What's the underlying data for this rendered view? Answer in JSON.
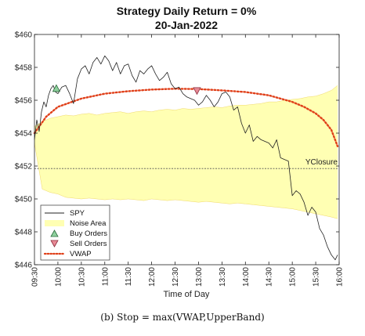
{
  "caption": "(b) Stop = max(VWAP,UpperBand)",
  "chart_data": {
    "type": "line",
    "title": "Strategy Daily Return = 0%",
    "subtitle": "20-Jan-2022",
    "xlabel": "Time of Day",
    "ylabel": "",
    "x_ticks": [
      "09:30",
      "10:00",
      "10:30",
      "11:00",
      "11:30",
      "12:00",
      "12:30",
      "13:00",
      "13:30",
      "14:00",
      "14:30",
      "15:00",
      "15:30",
      "16:00"
    ],
    "y_ticks": [
      "$446",
      "$448",
      "$450",
      "$452",
      "$454",
      "$456",
      "$458",
      "$460"
    ],
    "ylim": [
      446,
      460
    ],
    "xlim_minutes": [
      570,
      960
    ],
    "grid": false,
    "legend": {
      "position": "bottom-left",
      "entries": [
        "SPY",
        "Noise Area",
        "Buy Orders",
        "Sell Orders",
        "VWAP"
      ]
    },
    "annotation": "YClosure",
    "yclosure": 451.85,
    "colors": {
      "spy": "#222222",
      "noise_fill": "#ffffb3",
      "noise_edge": "#f0d86a",
      "buy": "#8fd19e",
      "sell": "#e88a96",
      "vwap": "#e0401a",
      "yclosure": "#555555"
    },
    "series": [
      {
        "name": "SPY",
        "x": [
          570,
          573,
          576,
          579,
          582,
          585,
          588,
          591,
          594,
          597,
          600,
          605,
          610,
          615,
          620,
          625,
          630,
          635,
          640,
          645,
          650,
          655,
          660,
          665,
          670,
          675,
          680,
          685,
          690,
          695,
          700,
          705,
          710,
          715,
          720,
          725,
          730,
          735,
          740,
          745,
          750,
          755,
          760,
          765,
          770,
          775,
          780,
          785,
          790,
          795,
          800,
          805,
          810,
          815,
          820,
          825,
          830,
          835,
          840,
          845,
          850,
          855,
          860,
          865,
          870,
          875,
          880,
          885,
          890,
          895,
          900,
          905,
          910,
          915,
          920,
          925,
          930,
          935,
          940,
          945,
          950,
          955,
          958
        ],
        "values": [
          453.6,
          454.8,
          454.1,
          455.3,
          455.9,
          455.6,
          456.3,
          456.7,
          456.9,
          456.5,
          456.4,
          456.8,
          456.9,
          456.4,
          455.8,
          457.3,
          457.9,
          458.1,
          457.6,
          458.3,
          458.6,
          458.2,
          458.7,
          458.4,
          457.8,
          458.3,
          457.6,
          458.1,
          458.2,
          457.5,
          457.1,
          457.8,
          457.6,
          457.9,
          458.1,
          457.6,
          457.2,
          457.4,
          457.7,
          457.0,
          456.7,
          456.8,
          456.4,
          456.2,
          456.1,
          456.0,
          455.7,
          455.9,
          456.3,
          456.0,
          455.6,
          455.9,
          456.4,
          456.5,
          456.2,
          455.4,
          455.6,
          454.6,
          454.0,
          454.5,
          453.5,
          453.8,
          453.6,
          453.5,
          453.4,
          453.1,
          453.6,
          452.5,
          452.4,
          452.3,
          450.2,
          450.5,
          450.3,
          449.8,
          449.0,
          449.5,
          449.2,
          448.2,
          447.8,
          447.1,
          446.6,
          446.3,
          446.6
        ]
      },
      {
        "name": "VWAP",
        "x": [
          570,
          585,
          600,
          630,
          660,
          690,
          720,
          750,
          780,
          810,
          840,
          870,
          900,
          915,
          930,
          940,
          950,
          958
        ],
        "values": [
          454.0,
          455.0,
          455.6,
          456.1,
          456.4,
          456.55,
          456.65,
          456.7,
          456.68,
          456.6,
          456.5,
          456.3,
          455.9,
          455.6,
          455.2,
          454.8,
          454.2,
          453.2
        ]
      },
      {
        "name": "Noise Area",
        "x": [
          570,
          580,
          590,
          600,
          610,
          620,
          630,
          640,
          650,
          660,
          670,
          680,
          690,
          700,
          710,
          720,
          730,
          740,
          750,
          760,
          770,
          780,
          790,
          800,
          810,
          820,
          830,
          840,
          850,
          860,
          870,
          880,
          890,
          900,
          910,
          920,
          930,
          940,
          950,
          958
        ],
        "upper": [
          454.4,
          454.7,
          454.9,
          455.0,
          455.1,
          455.05,
          455.15,
          455.2,
          455.1,
          455.2,
          455.25,
          455.3,
          455.2,
          455.3,
          455.35,
          455.3,
          455.4,
          455.45,
          455.4,
          455.5,
          455.45,
          455.5,
          455.55,
          455.6,
          455.55,
          455.65,
          455.7,
          455.7,
          455.75,
          455.8,
          455.9,
          455.9,
          456.0,
          456.05,
          456.1,
          456.2,
          456.25,
          456.4,
          456.6,
          456.9
        ],
        "lower": [
          453.4,
          450.6,
          450.4,
          450.3,
          450.1,
          450.05,
          450.0,
          450.05,
          450.0,
          449.95,
          450.0,
          449.95,
          450.0,
          449.95,
          449.9,
          450.0,
          449.95,
          449.9,
          449.95,
          449.9,
          449.85,
          449.8,
          449.85,
          449.8,
          449.75,
          449.7,
          449.75,
          449.7,
          449.65,
          449.6,
          449.55,
          449.5,
          449.45,
          449.4,
          449.3,
          449.2,
          449.1,
          449.0,
          448.9,
          448.8
        ]
      },
      {
        "name": "Buy Orders",
        "x": [
          598
        ],
        "values": [
          456.7
        ]
      },
      {
        "name": "Sell Orders",
        "x": [
          778
        ],
        "values": [
          456.6
        ]
      }
    ]
  }
}
